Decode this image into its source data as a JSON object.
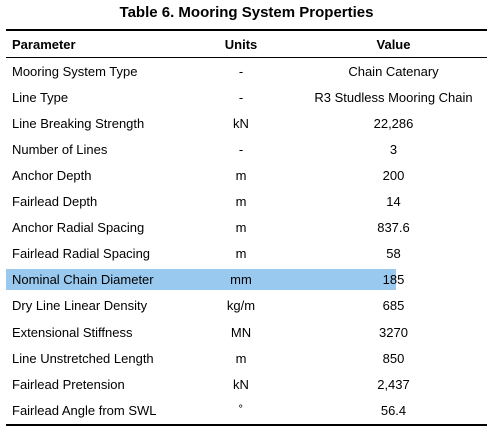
{
  "title": "Table 6. Mooring System Properties",
  "headers": {
    "parameter": "Parameter",
    "units": "Units",
    "value": "Value"
  },
  "rows": [
    {
      "parameter": "Mooring System Type",
      "units": "-",
      "value": "Chain Catenary"
    },
    {
      "parameter": "Line Type",
      "units": "-",
      "value": "R3 Studless Mooring Chain"
    },
    {
      "parameter": "Line Breaking Strength",
      "units": "kN",
      "value": "22,286"
    },
    {
      "parameter": "Number of Lines",
      "units": "-",
      "value": "3"
    },
    {
      "parameter": "Anchor Depth",
      "units": "m",
      "value": "200"
    },
    {
      "parameter": "Fairlead Depth",
      "units": "m",
      "value": "14"
    },
    {
      "parameter": "Anchor Radial Spacing",
      "units": "m",
      "value": "837.6"
    },
    {
      "parameter": "Fairlead Radial Spacing",
      "units": "m",
      "value": "58"
    },
    {
      "parameter": "Nominal Chain Diameter",
      "units": "mm",
      "value": "185"
    },
    {
      "parameter": "Dry Line Linear Density",
      "units": "kg/m",
      "value": "685"
    },
    {
      "parameter": "Extensional Stiffness",
      "units": "MN",
      "value": "3270"
    },
    {
      "parameter": "Line Unstretched Length",
      "units": "m",
      "value": "850"
    },
    {
      "parameter": "Fairlead Pretension",
      "units": "kN",
      "value": "2,437"
    },
    {
      "parameter": "Fairlead Angle from SWL",
      "units": "˚",
      "value": "56.4"
    }
  ],
  "selection": {
    "row_index": 8,
    "color": "#99c9ef"
  }
}
